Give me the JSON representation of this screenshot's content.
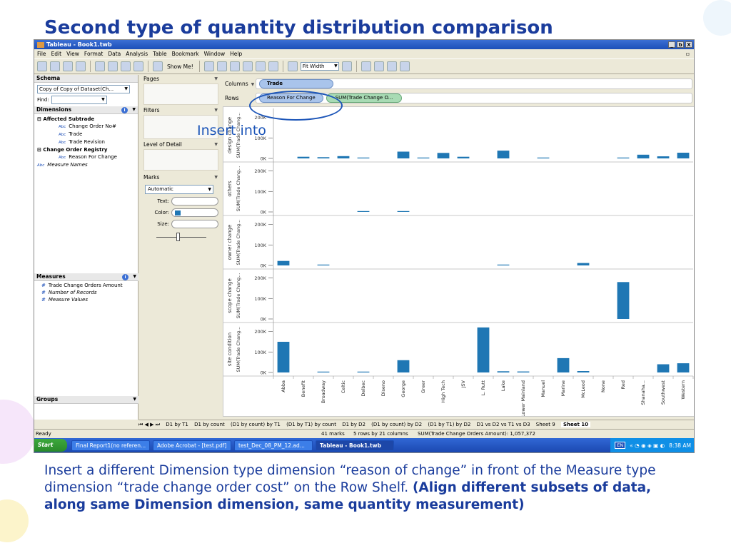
{
  "slide": {
    "title": "Second type of quantity distribution comparison",
    "annotation": "Insert into",
    "caption_plain": "Insert a different Dimension type dimension “reason of change” in front of the Measure type dimension “trade change order cost” on the Row Shelf. ",
    "caption_bold": "(Align different subsets of data, along same Dimension dimension, same quantity measurement)"
  },
  "window": {
    "title": "Tableau - Book1.twb",
    "buttons": [
      "_",
      "ƅ",
      "X"
    ]
  },
  "menu": [
    "File",
    "Edit",
    "View",
    "Format",
    "Data",
    "Analysis",
    "Table",
    "Bookmark",
    "Window",
    "Help"
  ],
  "toolbar": {
    "show_me": "Show Me!",
    "fit": "Fit Width"
  },
  "schema": {
    "header": "Schema",
    "datasource": "Copy of Copy of Dataset(Ch...",
    "find_label": "Find:"
  },
  "dimensions": {
    "header": "Dimensions",
    "groups": [
      {
        "name": "Affected Subtrade",
        "items": [
          "Change Order No#",
          "Trade",
          "Trade Revision"
        ]
      },
      {
        "name": "Change Order Registry",
        "items": [
          "Reason For Change"
        ]
      }
    ],
    "extra": "Measure Names",
    "type_glyph": "Abc"
  },
  "measures": {
    "header": "Measures",
    "items": [
      "Trade Change Orders Amount",
      "Number of Records",
      "Measure Values"
    ]
  },
  "groups_pane": {
    "header": "Groups"
  },
  "cards": {
    "pages": "Pages",
    "filters": "Filters",
    "lod": "Level of Detail",
    "marks": "Marks",
    "mark_type": "Automatic",
    "text": "Text:",
    "color": "Color:",
    "size": "Size:"
  },
  "shelves": {
    "columns_label": "Columns",
    "columns_pill": "Trade",
    "rows_label": "Rows",
    "rows_pill1": "Reason For Change",
    "rows_pill2": "SUM(Trade Change O..."
  },
  "chart_data": {
    "type": "bar",
    "categories": [
      "Abba",
      "Benefit",
      "Broadway",
      "Celtic",
      "Delbec",
      "Diseno",
      "George",
      "Greer",
      "High Tech",
      "JSV",
      "L. Rutt",
      "Lake",
      "Lower Mainland",
      "Manuel",
      "Marine",
      "McLeod",
      "None",
      "Red",
      "Shanaha...",
      "Southwest",
      "Western"
    ],
    "panel_axis_label": "SUM(Trade Chang...",
    "yticks": [
      "0K",
      "100K",
      "200K"
    ],
    "ylim": [
      0,
      230000
    ],
    "color": "#1f77b4",
    "series": [
      {
        "name": "design change",
        "values": [
          0,
          8000,
          6000,
          11000,
          1500,
          0,
          33000,
          1500,
          27000,
          8000,
          0,
          38000,
          0,
          3000,
          0,
          0,
          0,
          2000,
          18000,
          10000,
          28000
        ]
      },
      {
        "name": "others",
        "values": [
          0,
          0,
          0,
          0,
          1500,
          0,
          3000,
          0,
          0,
          0,
          0,
          0,
          0,
          0,
          0,
          0,
          0,
          0,
          0,
          0,
          0
        ]
      },
      {
        "name": "owner change",
        "values": [
          22000,
          0,
          2000,
          0,
          0,
          0,
          0,
          0,
          0,
          0,
          0,
          3000,
          0,
          0,
          0,
          12000,
          0,
          0,
          0,
          0,
          0
        ]
      },
      {
        "name": "scope change",
        "values": [
          0,
          0,
          0,
          0,
          0,
          0,
          0,
          0,
          0,
          0,
          0,
          0,
          0,
          0,
          0,
          0,
          0,
          180000,
          0,
          0,
          0
        ]
      },
      {
        "name": "site condition",
        "values": [
          150000,
          0,
          3000,
          0,
          2000,
          0,
          60000,
          0,
          0,
          0,
          220000,
          6000,
          5000,
          0,
          70000,
          7000,
          0,
          0,
          0,
          40000,
          45000
        ]
      }
    ]
  },
  "sheet_tabs": [
    "D1 by T1",
    "D1 by count",
    "(D1 by count) by T1",
    "(D1 by T1) by count",
    "D1 by D2",
    "(D1 by count) by D2",
    "(D1 by T1) by D2",
    "D1 vs D2 vs T1 vs D3",
    "Sheet 9",
    "Sheet 10"
  ],
  "sheet_nav": "⏮ ◀ ▶ ⏭",
  "status": {
    "ready": "Ready",
    "marks": "41 marks",
    "rows": "5 rows by 21 columns",
    "sum": "SUM(Trade Change Orders Amount): 1,057,372"
  },
  "taskbar": {
    "start": "Start",
    "items": [
      "Final Report1(no referen...",
      "Adobe Acrobat - [test.pdf]",
      "test_Dec_08_PM_12.ad...",
      "Tableau - Book1.twb"
    ],
    "lang": "EN",
    "time": "8:38 AM"
  }
}
